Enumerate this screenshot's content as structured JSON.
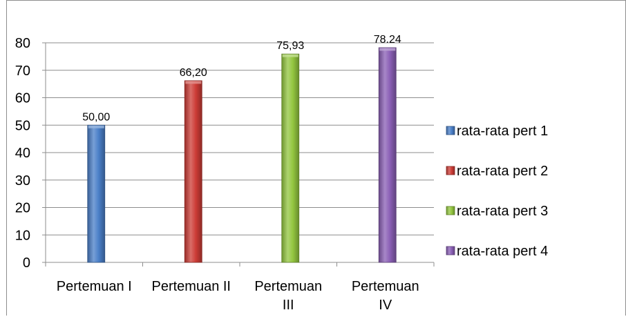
{
  "chart_data": {
    "type": "bar",
    "title": "",
    "xlabel": "",
    "ylabel": "",
    "categories": [
      "Pertemuan I",
      "Pertemuan II",
      "Pertemuan III",
      "Pertemuan IV"
    ],
    "category_label_lines": [
      [
        "Pertemuan I"
      ],
      [
        "Pertemuan II"
      ],
      [
        "Pertemuan",
        "III"
      ],
      [
        "Pertemuan",
        "IV"
      ]
    ],
    "series": [
      {
        "name": "rata-rata pert 1",
        "values": [
          50.0,
          null,
          null,
          null
        ],
        "labels": [
          "50,00",
          null,
          null,
          null
        ],
        "color": "#4a7fc8"
      },
      {
        "name": "rata-rata pert 2",
        "values": [
          null,
          66.2,
          null,
          null
        ],
        "labels": [
          null,
          "66,20",
          null,
          null
        ],
        "color": "#cc3c36"
      },
      {
        "name": "rata-rata pert 3",
        "values": [
          null,
          null,
          75.93,
          null
        ],
        "labels": [
          null,
          null,
          "75,93",
          null
        ],
        "color": "#93c63f"
      },
      {
        "name": "rata-rata pert 4",
        "values": [
          null,
          null,
          null,
          78.24
        ],
        "labels": [
          null,
          null,
          null,
          "78.24"
        ],
        "color": "#8a5fb5"
      }
    ],
    "ylim": [
      0,
      80
    ],
    "yticks": [
      0,
      10,
      20,
      30,
      40,
      50,
      60,
      70,
      80
    ],
    "grid": true,
    "legend": "right"
  }
}
